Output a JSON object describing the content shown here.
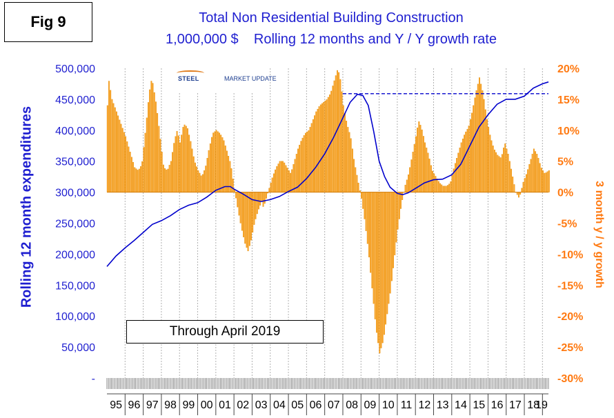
{
  "figure_label": "Fig 9",
  "title_line1": "Total Non Residential Building Construction",
  "title_line2": "1,000,000 $    Rolling 12 months and Y / Y growth rate",
  "logo": {
    "brand": "STEEL",
    "brand2": "MARKET UPDATE"
  },
  "annotation": "Through April 2019",
  "colors": {
    "bars": "#ffa321",
    "bar_edge": "#d88600",
    "line": "#0000cc",
    "left_axis": "#1f1fd0",
    "right_axis": "#ff7a12"
  },
  "chart_data": {
    "type": "bar+line",
    "ylabel_left": "Rolling 12 month expenditures",
    "ylabel_right": "3 month y / y growth",
    "yticks_left": [
      "500,000",
      "450,000",
      "400,000",
      "350,000",
      "300,000",
      "250,000",
      "200,000",
      "150,000",
      "100,000",
      "50,000",
      "-"
    ],
    "ylim_left": [
      0,
      500000
    ],
    "yticks_right": [
      "20%",
      "15%",
      "10%",
      "5%",
      "0%",
      "-5%",
      "-10%",
      "-15%",
      "-20%",
      "-25%",
      "-30%"
    ],
    "ylim_right": [
      -30,
      20
    ],
    "x_labels": [
      "95",
      "96",
      "97",
      "98",
      "99",
      "00",
      "01",
      "02",
      "03",
      "04",
      "05",
      "06",
      "07",
      "08",
      "09",
      "10",
      "11",
      "12",
      "13",
      "14",
      "15",
      "16",
      "17",
      "18",
      "19"
    ],
    "x_range": [
      1995.0,
      2019.33
    ],
    "reference_line": {
      "style": "dashed",
      "value": 459000,
      "from": 2008.0,
      "to": 2019.33
    },
    "growth_points": [
      [
        1995.0,
        14
      ],
      [
        1995.08,
        18
      ],
      [
        1995.25,
        15
      ],
      [
        1995.5,
        13
      ],
      [
        1995.75,
        11
      ],
      [
        1996.0,
        9
      ],
      [
        1996.3,
        6
      ],
      [
        1996.5,
        4
      ],
      [
        1996.7,
        3.5
      ],
      [
        1996.9,
        4.5
      ],
      [
        1997.1,
        10
      ],
      [
        1997.3,
        16
      ],
      [
        1997.45,
        18.5
      ],
      [
        1997.7,
        14
      ],
      [
        1997.9,
        9
      ],
      [
        1998.1,
        4
      ],
      [
        1998.3,
        3.5
      ],
      [
        1998.5,
        5
      ],
      [
        1998.7,
        8.5
      ],
      [
        1998.85,
        10
      ],
      [
        1999.0,
        8
      ],
      [
        1999.2,
        11
      ],
      [
        1999.4,
        10.5
      ],
      [
        1999.6,
        8
      ],
      [
        1999.8,
        5
      ],
      [
        2000.0,
        3.5
      ],
      [
        2000.2,
        2.5
      ],
      [
        2000.4,
        4
      ],
      [
        2000.6,
        7
      ],
      [
        2000.8,
        9.5
      ],
      [
        2001.0,
        10
      ],
      [
        2001.2,
        9.5
      ],
      [
        2001.4,
        8.5
      ],
      [
        2001.6,
        6.5
      ],
      [
        2001.8,
        4.5
      ],
      [
        2002.0,
        0.5
      ],
      [
        2002.2,
        -3
      ],
      [
        2002.4,
        -6
      ],
      [
        2002.6,
        -8.5
      ],
      [
        2002.75,
        -9.5
      ],
      [
        2002.9,
        -8
      ],
      [
        2003.1,
        -5
      ],
      [
        2003.3,
        -3
      ],
      [
        2003.5,
        -1.5
      ],
      [
        2003.6,
        -2.5
      ],
      [
        2003.75,
        -1
      ],
      [
        2003.9,
        0.5
      ],
      [
        2004.1,
        2.5
      ],
      [
        2004.3,
        4
      ],
      [
        2004.5,
        5
      ],
      [
        2004.7,
        5
      ],
      [
        2004.9,
        4
      ],
      [
        2005.0,
        3.5
      ],
      [
        2005.1,
        3
      ],
      [
        2005.3,
        5
      ],
      [
        2005.5,
        7
      ],
      [
        2005.7,
        8.5
      ],
      [
        2005.9,
        9.5
      ],
      [
        2006.1,
        10
      ],
      [
        2006.3,
        11.5
      ],
      [
        2006.5,
        13
      ],
      [
        2006.7,
        14
      ],
      [
        2006.9,
        14.5
      ],
      [
        2007.1,
        15
      ],
      [
        2007.3,
        16
      ],
      [
        2007.5,
        18
      ],
      [
        2007.7,
        20
      ],
      [
        2007.85,
        18
      ],
      [
        2008.0,
        14
      ],
      [
        2008.2,
        11
      ],
      [
        2008.4,
        9
      ],
      [
        2008.6,
        5
      ],
      [
        2008.8,
        2
      ],
      [
        2009.0,
        -1
      ],
      [
        2009.2,
        -5
      ],
      [
        2009.4,
        -10
      ],
      [
        2009.6,
        -16
      ],
      [
        2009.8,
        -22
      ],
      [
        2010.0,
        -26
      ],
      [
        2010.2,
        -24
      ],
      [
        2010.4,
        -20
      ],
      [
        2010.6,
        -16
      ],
      [
        2010.8,
        -11
      ],
      [
        2011.0,
        -6
      ],
      [
        2011.2,
        -2
      ],
      [
        2011.4,
        1
      ],
      [
        2011.6,
        3
      ],
      [
        2011.8,
        6
      ],
      [
        2012.0,
        9
      ],
      [
        2012.15,
        11.5
      ],
      [
        2012.3,
        10.5
      ],
      [
        2012.5,
        8
      ],
      [
        2012.7,
        6
      ],
      [
        2012.9,
        3.5
      ],
      [
        2013.1,
        2.5
      ],
      [
        2013.3,
        1.5
      ],
      [
        2013.5,
        1
      ],
      [
        2013.7,
        1
      ],
      [
        2013.9,
        1.5
      ],
      [
        2014.1,
        4
      ],
      [
        2014.3,
        6
      ],
      [
        2014.5,
        8
      ],
      [
        2014.7,
        9.5
      ],
      [
        2014.9,
        10.5
      ],
      [
        2015.1,
        13
      ],
      [
        2015.3,
        16
      ],
      [
        2015.5,
        18.5
      ],
      [
        2015.7,
        16
      ],
      [
        2015.9,
        12
      ],
      [
        2016.1,
        9
      ],
      [
        2016.3,
        7
      ],
      [
        2016.5,
        6
      ],
      [
        2016.7,
        5.5
      ],
      [
        2016.9,
        8
      ],
      [
        2017.1,
        6
      ],
      [
        2017.3,
        3
      ],
      [
        2017.5,
        0
      ],
      [
        2017.7,
        -1
      ],
      [
        2017.9,
        1.5
      ],
      [
        2018.1,
        3
      ],
      [
        2018.3,
        5
      ],
      [
        2018.5,
        7
      ],
      [
        2018.7,
        6
      ],
      [
        2018.9,
        4
      ],
      [
        2019.1,
        3
      ],
      [
        2019.33,
        3.5
      ]
    ],
    "expenditure_points": [
      [
        1995.0,
        180000
      ],
      [
        1995.5,
        197000
      ],
      [
        1996.0,
        210000
      ],
      [
        1996.5,
        222000
      ],
      [
        1997.0,
        235000
      ],
      [
        1997.5,
        248000
      ],
      [
        1998.0,
        254000
      ],
      [
        1998.5,
        262000
      ],
      [
        1999.0,
        272000
      ],
      [
        1999.5,
        279000
      ],
      [
        2000.0,
        283000
      ],
      [
        2000.5,
        292000
      ],
      [
        2001.0,
        303000
      ],
      [
        2001.5,
        309000
      ],
      [
        2001.8,
        309000
      ],
      [
        2002.0,
        305000
      ],
      [
        2002.5,
        297000
      ],
      [
        2003.0,
        288000
      ],
      [
        2003.5,
        285000
      ],
      [
        2004.0,
        288000
      ],
      [
        2004.5,
        293000
      ],
      [
        2005.0,
        301000
      ],
      [
        2005.5,
        308000
      ],
      [
        2006.0,
        322000
      ],
      [
        2006.5,
        340000
      ],
      [
        2007.0,
        362000
      ],
      [
        2007.5,
        389000
      ],
      [
        2008.0,
        420000
      ],
      [
        2008.4,
        445000
      ],
      [
        2008.8,
        458000
      ],
      [
        2009.1,
        456000
      ],
      [
        2009.4,
        440000
      ],
      [
        2009.7,
        398000
      ],
      [
        2010.0,
        350000
      ],
      [
        2010.3,
        325000
      ],
      [
        2010.6,
        308000
      ],
      [
        2011.0,
        298000
      ],
      [
        2011.3,
        296000
      ],
      [
        2011.6,
        299000
      ],
      [
        2012.0,
        306000
      ],
      [
        2012.5,
        315000
      ],
      [
        2013.0,
        320000
      ],
      [
        2013.5,
        321000
      ],
      [
        2014.0,
        328000
      ],
      [
        2014.5,
        345000
      ],
      [
        2015.0,
        375000
      ],
      [
        2015.5,
        405000
      ],
      [
        2016.0,
        425000
      ],
      [
        2016.5,
        442000
      ],
      [
        2017.0,
        450000
      ],
      [
        2017.5,
        450000
      ],
      [
        2018.0,
        455000
      ],
      [
        2018.5,
        468000
      ],
      [
        2019.0,
        475000
      ],
      [
        2019.33,
        478000
      ]
    ]
  }
}
